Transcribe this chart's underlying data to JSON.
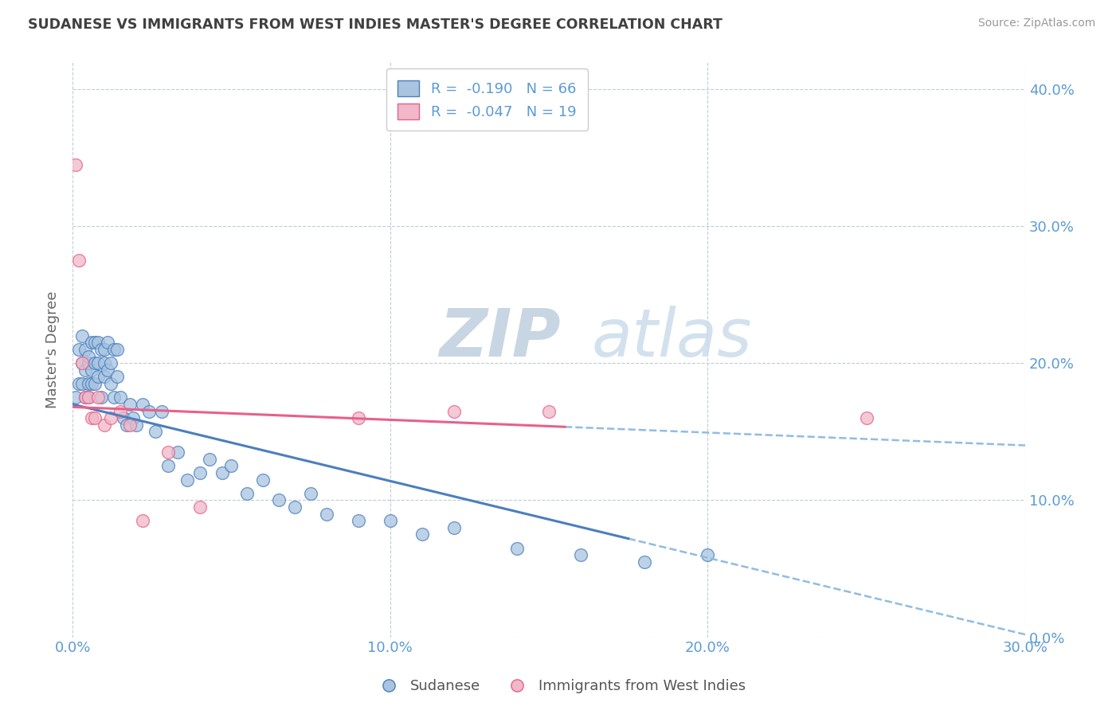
{
  "title": "SUDANESE VS IMMIGRANTS FROM WEST INDIES MASTER'S DEGREE CORRELATION CHART",
  "source": "Source: ZipAtlas.com",
  "ylabel_label": "Master's Degree",
  "legend_bottom": [
    "Sudanese",
    "Immigrants from West Indies"
  ],
  "R1": -0.19,
  "N1": 66,
  "R2": -0.047,
  "N2": 19,
  "blue_scatter_x": [
    0.001,
    0.002,
    0.002,
    0.003,
    0.003,
    0.003,
    0.004,
    0.004,
    0.004,
    0.005,
    0.005,
    0.005,
    0.005,
    0.006,
    0.006,
    0.006,
    0.007,
    0.007,
    0.007,
    0.008,
    0.008,
    0.008,
    0.009,
    0.009,
    0.01,
    0.01,
    0.01,
    0.011,
    0.011,
    0.012,
    0.012,
    0.013,
    0.013,
    0.014,
    0.014,
    0.015,
    0.016,
    0.017,
    0.018,
    0.019,
    0.02,
    0.022,
    0.024,
    0.026,
    0.028,
    0.03,
    0.033,
    0.036,
    0.04,
    0.043,
    0.047,
    0.05,
    0.055,
    0.06,
    0.065,
    0.07,
    0.075,
    0.08,
    0.09,
    0.1,
    0.11,
    0.12,
    0.14,
    0.16,
    0.18,
    0.2
  ],
  "blue_scatter_y": [
    0.175,
    0.21,
    0.185,
    0.22,
    0.2,
    0.185,
    0.195,
    0.21,
    0.175,
    0.2,
    0.185,
    0.175,
    0.205,
    0.195,
    0.215,
    0.185,
    0.2,
    0.185,
    0.215,
    0.19,
    0.2,
    0.215,
    0.175,
    0.21,
    0.19,
    0.2,
    0.21,
    0.195,
    0.215,
    0.185,
    0.2,
    0.175,
    0.21,
    0.19,
    0.21,
    0.175,
    0.16,
    0.155,
    0.17,
    0.16,
    0.155,
    0.17,
    0.165,
    0.15,
    0.165,
    0.125,
    0.135,
    0.115,
    0.12,
    0.13,
    0.12,
    0.125,
    0.105,
    0.115,
    0.1,
    0.095,
    0.105,
    0.09,
    0.085,
    0.085,
    0.075,
    0.08,
    0.065,
    0.06,
    0.055,
    0.06
  ],
  "pink_scatter_x": [
    0.001,
    0.002,
    0.003,
    0.004,
    0.005,
    0.006,
    0.007,
    0.008,
    0.01,
    0.012,
    0.015,
    0.018,
    0.022,
    0.03,
    0.04,
    0.09,
    0.12,
    0.15,
    0.25
  ],
  "pink_scatter_y": [
    0.345,
    0.275,
    0.2,
    0.175,
    0.175,
    0.16,
    0.16,
    0.175,
    0.155,
    0.16,
    0.165,
    0.155,
    0.085,
    0.135,
    0.095,
    0.16,
    0.165,
    0.165,
    0.16
  ],
  "blue_line_start_x": 0.0,
  "blue_line_end_x": 0.175,
  "blue_line_start_y": 0.17,
  "blue_line_end_y": 0.072,
  "pink_line_start_x": 0.0,
  "pink_line_solid_end_x": 0.155,
  "pink_line_dash_end_x": 0.3,
  "pink_line_start_y": 0.168,
  "pink_line_end_y": 0.14,
  "blue_color": "#a8c4e0",
  "pink_color": "#f0b8c8",
  "blue_line_color": "#4a7fbe",
  "pink_line_color": "#e8608a",
  "dash_line_color": "#90bce0",
  "watermark_zip_color": "#c0cfe0",
  "watermark_atlas_color": "#b0d0e8",
  "background_color": "#ffffff",
  "grid_color": "#c0ccd8",
  "title_color": "#404040",
  "axis_color": "#5b9bd5",
  "xmin": 0.0,
  "xmax": 0.3,
  "ymin": 0.0,
  "ymax": 0.42
}
